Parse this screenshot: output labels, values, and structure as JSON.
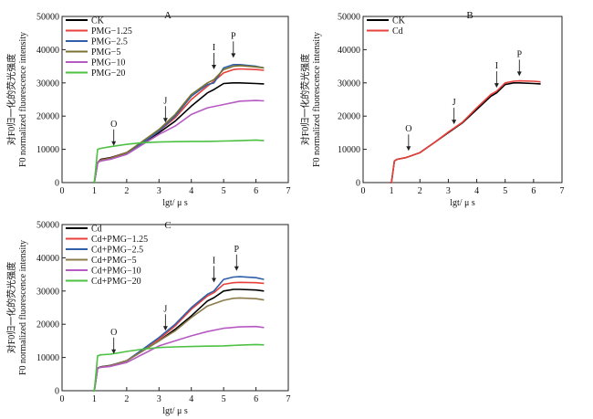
{
  "chart_data": [
    {
      "panel": "A",
      "type": "line",
      "xlabel": "lgt/ μ s",
      "ylabel_cn": "对F0归一化的荧光强度",
      "ylabel_en": "F0 normalized fluorescence intensity",
      "xlim": [
        0,
        7
      ],
      "ylim": [
        0,
        50000
      ],
      "xticks": [
        "0",
        "1",
        "2",
        "3",
        "4",
        "5",
        "6",
        "7"
      ],
      "yticks": [
        "0",
        "10000",
        "20000",
        "30000",
        "40000",
        "50000"
      ],
      "legend_position": "top-left",
      "grid": false,
      "markers": [
        {
          "label": "O",
          "x": 1.6,
          "y": 10500
        },
        {
          "label": "J",
          "x": 3.2,
          "y": 17500
        },
        {
          "label": "I",
          "x": 4.7,
          "y": 33500
        },
        {
          "label": "P",
          "x": 5.3,
          "y": 37000
        }
      ],
      "series": [
        {
          "name": "CK",
          "color": "#000000",
          "x": [
            0.95,
            1.0,
            1.1,
            1.2,
            1.5,
            2.0,
            2.5,
            3.0,
            3.5,
            4.0,
            4.5,
            4.7,
            5.0,
            5.3,
            5.5,
            6.0,
            6.25
          ],
          "y": [
            0,
            0,
            6000,
            7000,
            7500,
            9000,
            12000,
            15000,
            18500,
            23000,
            27000,
            28000,
            29800,
            30000,
            30000,
            29800,
            29700
          ]
        },
        {
          "name": "PMG−1.25",
          "color": "#e8413c",
          "x": [
            0.95,
            1.0,
            1.1,
            1.2,
            1.5,
            2.0,
            2.5,
            3.0,
            3.5,
            4.0,
            4.5,
            4.7,
            5.0,
            5.3,
            5.5,
            6.0,
            6.25
          ],
          "y": [
            0,
            0,
            6000,
            6800,
            7400,
            9000,
            12000,
            15500,
            19500,
            25000,
            29000,
            30500,
            33000,
            34000,
            34200,
            34000,
            33800
          ]
        },
        {
          "name": "PMG−2.5",
          "color": "#2f5fa8",
          "x": [
            0.95,
            1.0,
            1.1,
            1.2,
            1.5,
            2.0,
            2.5,
            3.0,
            3.5,
            4.0,
            4.5,
            4.7,
            5.0,
            5.3,
            5.5,
            6.0,
            6.25
          ],
          "y": [
            0,
            0,
            6000,
            6700,
            7300,
            8900,
            12000,
            15500,
            20000,
            26000,
            29500,
            30000,
            34500,
            35500,
            35500,
            35000,
            34500
          ]
        },
        {
          "name": "PMG−5",
          "color": "#7b7230",
          "x": [
            0.95,
            1.0,
            1.1,
            1.2,
            1.5,
            2.0,
            2.5,
            3.0,
            3.5,
            4.0,
            4.5,
            4.7,
            5.0,
            5.3,
            5.5,
            6.0,
            6.25
          ],
          "y": [
            0,
            0,
            6000,
            6700,
            7300,
            9000,
            12500,
            16000,
            20500,
            26500,
            30000,
            31000,
            34000,
            35000,
            35200,
            34800,
            34500
          ]
        },
        {
          "name": "PMG−10",
          "color": "#b659c2",
          "x": [
            0.95,
            1.0,
            1.1,
            1.2,
            1.5,
            2.0,
            2.5,
            3.0,
            3.5,
            4.0,
            4.5,
            5.0,
            5.5,
            6.0,
            6.25
          ],
          "y": [
            0,
            0,
            6000,
            6500,
            7000,
            8500,
            11500,
            14500,
            17000,
            20500,
            22500,
            23500,
            24500,
            24700,
            24600
          ]
        },
        {
          "name": "PMG−20",
          "color": "#4cc142",
          "x": [
            0.95,
            1.0,
            1.1,
            1.2,
            1.5,
            2.0,
            2.5,
            3.0,
            3.5,
            4.0,
            4.5,
            5.0,
            5.5,
            6.0,
            6.25
          ],
          "y": [
            0,
            0,
            10000,
            10300,
            10800,
            11500,
            12000,
            12200,
            12300,
            12400,
            12400,
            12500,
            12600,
            12800,
            12600
          ]
        }
      ]
    },
    {
      "panel": "B",
      "type": "line",
      "xlabel": "lgt/ μ s",
      "ylabel_cn": "对F0归一化的荧光强度",
      "ylabel_en": "F0 normalized fluorescence intensity",
      "xlim": [
        0,
        7
      ],
      "ylim": [
        0,
        50000
      ],
      "xticks": [
        "0",
        "1",
        "2",
        "3",
        "4",
        "5",
        "6",
        "7"
      ],
      "yticks": [
        "0",
        "10000",
        "20000",
        "30000",
        "40000",
        "50000"
      ],
      "legend_position": "top-left",
      "grid": false,
      "markers": [
        {
          "label": "O",
          "x": 1.6,
          "y": 9000
        },
        {
          "label": "J",
          "x": 3.2,
          "y": 17000
        },
        {
          "label": "I",
          "x": 4.7,
          "y": 28000
        },
        {
          "label": "P",
          "x": 5.5,
          "y": 31500
        }
      ],
      "series": [
        {
          "name": "CK",
          "color": "#000000",
          "x": [
            0.95,
            1.0,
            1.1,
            1.2,
            1.5,
            2.0,
            2.5,
            3.0,
            3.5,
            4.0,
            4.5,
            4.7,
            5.0,
            5.3,
            5.5,
            6.0,
            6.25
          ],
          "y": [
            0,
            0,
            6500,
            7000,
            7500,
            9000,
            12000,
            15000,
            18000,
            22000,
            26000,
            27000,
            29500,
            30000,
            30000,
            29800,
            29700
          ]
        },
        {
          "name": "Cd",
          "color": "#e8413c",
          "x": [
            0.95,
            1.0,
            1.1,
            1.2,
            1.5,
            2.0,
            2.5,
            3.0,
            3.5,
            4.0,
            4.5,
            4.7,
            5.0,
            5.3,
            5.5,
            6.0,
            6.25
          ],
          "y": [
            0,
            0,
            6500,
            7000,
            7500,
            9000,
            12000,
            15200,
            18200,
            22500,
            26500,
            27500,
            30000,
            30500,
            30600,
            30500,
            30300
          ]
        }
      ]
    },
    {
      "panel": "C",
      "type": "line",
      "xlabel": "lgt/ μ s",
      "ylabel_cn": "对F0归一化的荧光强度",
      "ylabel_en": "F0 normalized fluorescence intensity",
      "xlim": [
        0,
        7
      ],
      "ylim": [
        0,
        50000
      ],
      "xticks": [
        "0",
        "1",
        "2",
        "3",
        "4",
        "5",
        "6",
        "7"
      ],
      "yticks": [
        "0",
        "10000",
        "20000",
        "30000",
        "40000",
        "50000"
      ],
      "legend_position": "top-left",
      "grid": false,
      "markers": [
        {
          "label": "O",
          "x": 1.6,
          "y": 10500
        },
        {
          "label": "J",
          "x": 3.2,
          "y": 17500
        },
        {
          "label": "I",
          "x": 4.7,
          "y": 32000
        },
        {
          "label": "P",
          "x": 5.4,
          "y": 35500
        }
      ],
      "series": [
        {
          "name": "Cd",
          "color": "#000000",
          "x": [
            0.95,
            1.0,
            1.1,
            1.2,
            1.5,
            2.0,
            2.5,
            3.0,
            3.5,
            4.0,
            4.5,
            4.7,
            5.0,
            5.3,
            5.5,
            6.0,
            6.25
          ],
          "y": [
            0,
            0,
            6800,
            7200,
            7600,
            9000,
            12000,
            15000,
            18500,
            22500,
            27000,
            28000,
            30000,
            30500,
            30500,
            30300,
            30000
          ]
        },
        {
          "name": "Cd+PMG−1.25",
          "color": "#e8413c",
          "x": [
            0.95,
            1.0,
            1.1,
            1.2,
            1.5,
            2.0,
            2.5,
            3.0,
            3.5,
            4.0,
            4.5,
            4.7,
            5.0,
            5.3,
            5.5,
            6.0,
            6.25
          ],
          "y": [
            0,
            0,
            6800,
            7100,
            7500,
            9000,
            12000,
            15500,
            19500,
            24500,
            28500,
            29500,
            32000,
            32500,
            32600,
            32500,
            32300
          ]
        },
        {
          "name": "Cd+PMG−2.5",
          "color": "#2f5fa8",
          "x": [
            0.95,
            1.0,
            1.1,
            1.2,
            1.5,
            2.0,
            2.5,
            3.0,
            3.5,
            4.0,
            4.5,
            4.7,
            5.0,
            5.3,
            5.5,
            6.0,
            6.25
          ],
          "y": [
            0,
            0,
            6800,
            7100,
            7500,
            9000,
            12500,
            16000,
            20000,
            25000,
            29000,
            30000,
            33500,
            34200,
            34300,
            34000,
            33500
          ]
        },
        {
          "name": "Cd+PMG−5",
          "color": "#8b7a4a",
          "x": [
            0.95,
            1.0,
            1.1,
            1.2,
            1.5,
            2.0,
            2.5,
            3.0,
            3.5,
            4.0,
            4.5,
            5.0,
            5.3,
            5.5,
            6.0,
            6.25
          ],
          "y": [
            0,
            0,
            6800,
            7100,
            7500,
            9000,
            12000,
            15000,
            18000,
            22000,
            25500,
            27200,
            27800,
            27900,
            27700,
            27300
          ]
        },
        {
          "name": "Cd+PMG−10",
          "color": "#b659c2",
          "x": [
            0.95,
            1.0,
            1.1,
            1.2,
            1.5,
            2.0,
            2.5,
            3.0,
            3.5,
            4.0,
            4.5,
            5.0,
            5.5,
            6.0,
            6.25
          ],
          "y": [
            0,
            0,
            6800,
            7000,
            7300,
            8500,
            11000,
            13500,
            15000,
            16500,
            17800,
            18800,
            19200,
            19300,
            19000
          ]
        },
        {
          "name": "Cd+PMG−20",
          "color": "#4cc142",
          "x": [
            0.95,
            1.0,
            1.1,
            1.2,
            1.5,
            2.0,
            2.5,
            3.0,
            3.5,
            4.0,
            4.5,
            5.0,
            5.5,
            6.0,
            6.25
          ],
          "y": [
            0,
            0,
            10500,
            10800,
            11000,
            11800,
            12500,
            13000,
            13200,
            13300,
            13400,
            13500,
            13700,
            13900,
            13800
          ]
        }
      ]
    }
  ]
}
